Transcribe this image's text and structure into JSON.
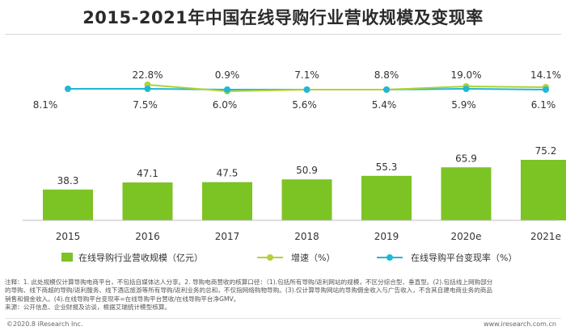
{
  "title": "2015-2021年中国在线导购行业营收规模及变现率",
  "chart_data": {
    "type": "bar+line",
    "categories": [
      "2015",
      "2016",
      "2017",
      "2018",
      "2019",
      "2020e",
      "2021e"
    ],
    "series": [
      {
        "name": "在线导购行业营收规模（亿元）",
        "kind": "bar",
        "color": "#7cc324",
        "values": [
          38.3,
          47.1,
          47.5,
          50.9,
          55.3,
          65.9,
          75.2
        ],
        "labels": [
          "38.3",
          "47.1",
          "47.5",
          "50.9",
          "55.3",
          "65.9",
          "75.2"
        ]
      },
      {
        "name": "增速（%）",
        "kind": "line",
        "color": "#b2d235",
        "values": [
          null,
          22.8,
          0.9,
          7.1,
          8.8,
          19.0,
          14.1
        ],
        "labels": [
          "",
          "22.8%",
          "0.9%",
          "7.1%",
          "8.8%",
          "19.0%",
          "14.1%"
        ]
      },
      {
        "name": "在线导购平台变现率（%）",
        "kind": "line",
        "color": "#1fb8d6",
        "values": [
          8.1,
          7.5,
          6.0,
          5.6,
          5.4,
          5.9,
          6.1
        ],
        "labels": [
          "8.1%",
          "7.5%",
          "6.0%",
          "5.6%",
          "5.4%",
          "5.9%",
          "6.1%"
        ]
      }
    ],
    "bar_ylim": [
      0,
      80
    ],
    "legend_position": "bottom"
  },
  "notes": [
    "注释：1. 此处规模仅计算导购电商平台，不包括自媒体达人分享。2. 导购电商营收的核算口径：（1).包括所有导购/返利网站的规模，不区分综合型、垂直型。(2).包括线上网购部分",
    "的导购、线下商超的导购/返利服务、线下酒店旅游等所有导购/返利业务的总和，不仅指网络购物导购。(3).仅计算导购网站的导购佣金收入与广告收入，不含其自建电商业务的商品",
    "销售和佣金收入。(4).在线导购平台变现率=在线导购平台营收/在线导购平台净GMV。",
    "来源：公开信息、企业财报及访谈，根据艾瑞统计模型核算。"
  ],
  "footer_left": "©2020.8 iResearch Inc.",
  "footer_right": "www.iresearch.com.cn"
}
